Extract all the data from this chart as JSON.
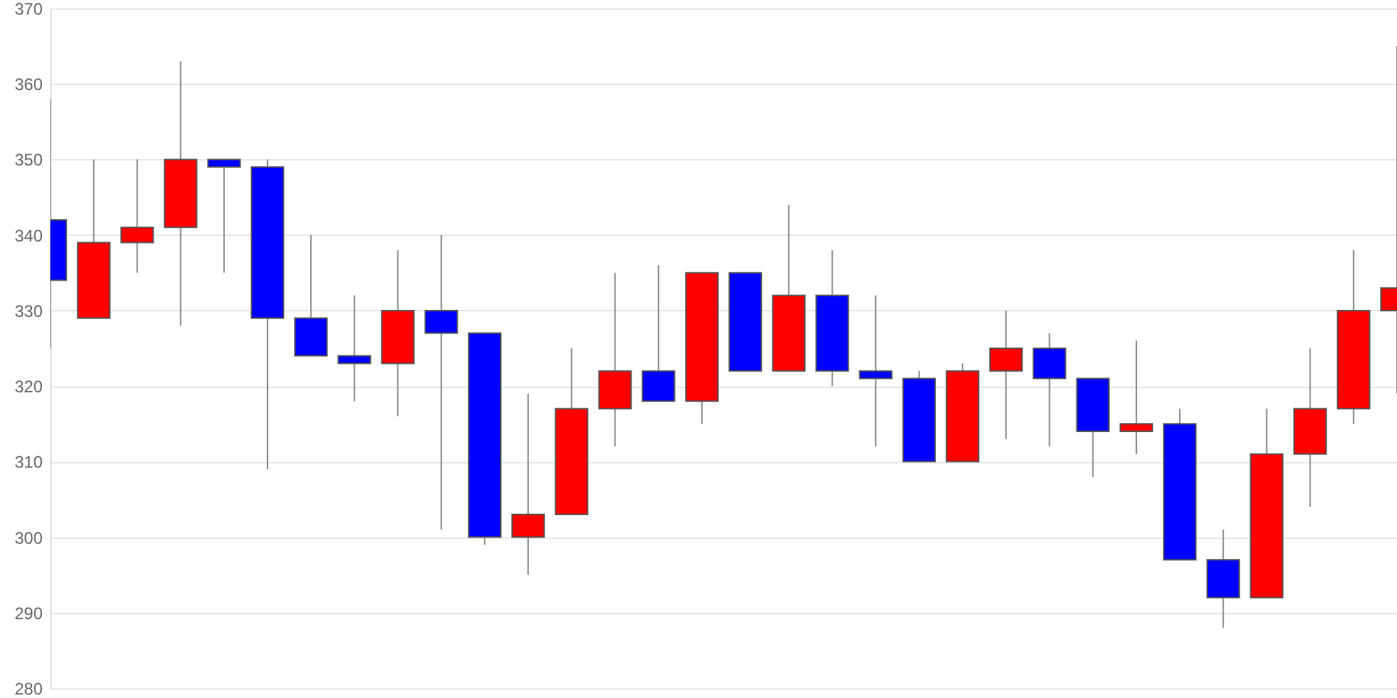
{
  "chart_data": {
    "type": "candlestick",
    "categories": [
      null,
      null,
      null,
      null,
      null,
      null,
      null,
      null,
      null,
      null,
      null,
      null,
      null,
      null,
      null,
      null,
      null,
      null,
      null,
      null,
      null,
      null,
      null,
      null,
      null,
      null,
      null,
      null,
      null,
      null,
      null,
      null
    ],
    "ohlc": [
      [
        342,
        358,
        325,
        334
      ],
      [
        329,
        350,
        329,
        339
      ],
      [
        339,
        350,
        335,
        341
      ],
      [
        341,
        363,
        328,
        350
      ],
      [
        350,
        350,
        335,
        349
      ],
      [
        349,
        350,
        309,
        329
      ],
      [
        329,
        340,
        324,
        324
      ],
      [
        324,
        332,
        318,
        323
      ],
      [
        323,
        338,
        316,
        330
      ],
      [
        330,
        340,
        301,
        327
      ],
      [
        327,
        327,
        299,
        300
      ],
      [
        300,
        319,
        295,
        303
      ],
      [
        303,
        325,
        303,
        317
      ],
      [
        317,
        335,
        312,
        322
      ],
      [
        322,
        336,
        318,
        318
      ],
      [
        318,
        335,
        315,
        335
      ],
      [
        335,
        335,
        322,
        322
      ],
      [
        322,
        344,
        322,
        332
      ],
      [
        332,
        338,
        320,
        322
      ],
      [
        322,
        332,
        312,
        321
      ],
      [
        321,
        322,
        310,
        310
      ],
      [
        310,
        323,
        310,
        322
      ],
      [
        322,
        330,
        313,
        325
      ],
      [
        325,
        327,
        312,
        321
      ],
      [
        321,
        321,
        308,
        314
      ],
      [
        314,
        326,
        311,
        315
      ],
      [
        315,
        317,
        297,
        297
      ],
      [
        297,
        301,
        288,
        292
      ],
      [
        292,
        317,
        292,
        311
      ],
      [
        311,
        325,
        304,
        317
      ],
      [
        317,
        338,
        315,
        330
      ],
      [
        330,
        365,
        319,
        333
      ]
    ],
    "colors": [
      "#0000ff",
      "#ff0000",
      "#ff0000",
      "#ff0000",
      "#0000ff",
      "#0000ff",
      "#0000ff",
      "#0000ff",
      "#ff0000",
      "#0000ff",
      "#0000ff",
      "#ff0000",
      "#ff0000",
      "#ff0000",
      "#0000ff",
      "#ff0000",
      "#0000ff",
      "#ff0000",
      "#0000ff",
      "#0000ff",
      "#0000ff",
      "#ff0000",
      "#ff0000",
      "#0000ff",
      "#0000ff",
      "#ff0000",
      "#0000ff",
      "#0000ff",
      "#ff0000",
      "#ff0000",
      "#ff0000",
      "#ff0000"
    ],
    "ylim": [
      280,
      370
    ],
    "yticks": [
      280,
      290,
      300,
      310,
      320,
      330,
      340,
      350,
      360,
      370
    ],
    "grid": "y",
    "tick_labels": "y"
  }
}
